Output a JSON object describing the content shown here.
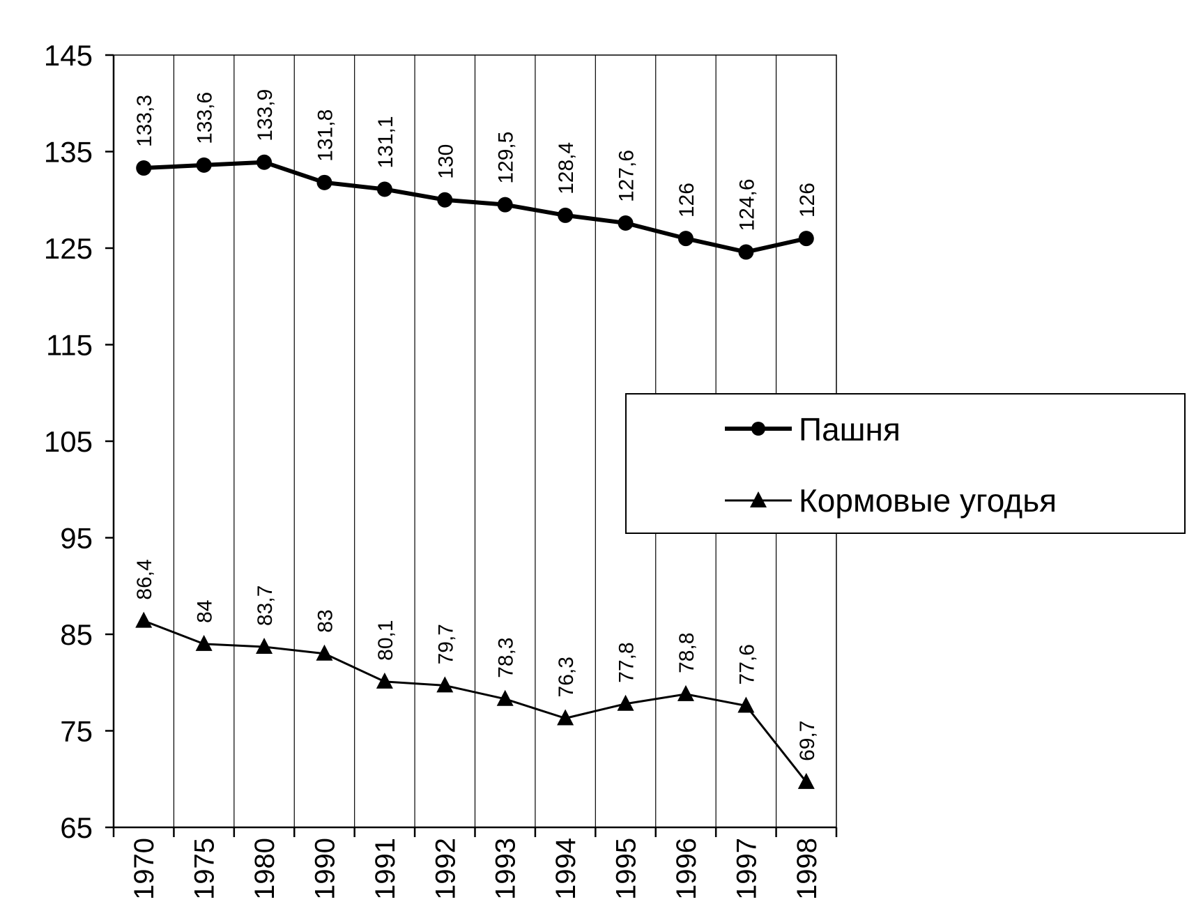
{
  "chart_data": {
    "type": "line",
    "title": "",
    "xlabel": "",
    "ylabel": "",
    "categories": [
      "1970",
      "1975",
      "1980",
      "1990",
      "1991",
      "1992",
      "1993",
      "1994",
      "1995",
      "1996",
      "1997",
      "1998"
    ],
    "ylim": [
      65,
      145
    ],
    "yticks": [
      "145",
      "135",
      "125",
      "115",
      "105",
      "95",
      "85",
      "75",
      "65"
    ],
    "grid": "vertical",
    "legend_position": "right",
    "series": [
      {
        "name": "Пашня",
        "marker": "circle",
        "values": [
          133.3,
          133.6,
          133.9,
          131.8,
          131.1,
          130,
          129.5,
          128.4,
          127.6,
          126,
          124.6,
          126
        ],
        "labels": [
          "133,3",
          "133,6",
          "133,9",
          "131,8",
          "131,1",
          "130",
          "129,5",
          "128,4",
          "127,6",
          "126",
          "124,6",
          "126"
        ]
      },
      {
        "name": "Кормовые угодья",
        "marker": "triangle",
        "values": [
          86.4,
          84,
          83.7,
          83,
          80.1,
          79.7,
          78.3,
          76.3,
          77.8,
          78.8,
          77.6,
          69.7
        ],
        "labels": [
          "86,4",
          "84",
          "83,7",
          "83",
          "80,1",
          "79,7",
          "78,3",
          "76,3",
          "77,8",
          "78,8",
          "77,6",
          "69,7"
        ]
      }
    ]
  },
  "legend": {
    "series1": "Пашня",
    "series2": "Кормовые угодья"
  }
}
